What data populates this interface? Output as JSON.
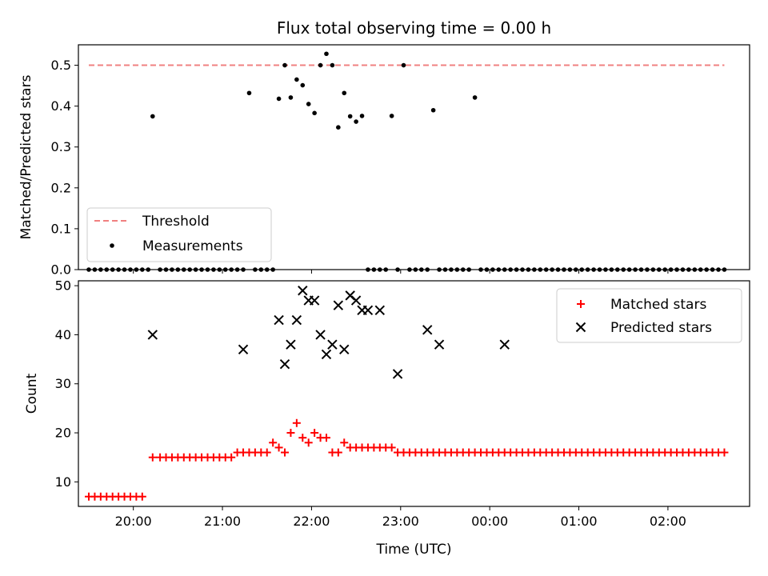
{
  "chart_data": [
    {
      "type": "scatter",
      "title": "Flux total observing time = 0.00 h",
      "xlabel": "",
      "ylabel": "Matched/Predicted stars",
      "xlim": [
        "19:23",
        "02:55"
      ],
      "ylim": [
        0.0,
        0.55
      ],
      "yticks": [
        0.0,
        0.1,
        0.2,
        0.3,
        0.4,
        0.5
      ],
      "yticklabels": [
        "0.0",
        "0.1",
        "0.2",
        "0.3",
        "0.4",
        "0.5"
      ],
      "xticks": [
        "20:00",
        "21:00",
        "22:00",
        "23:00",
        "00:00",
        "01:00",
        "02:00"
      ],
      "legend_position": "lower-left",
      "threshold": {
        "name": "Threshold",
        "value": 0.5,
        "color": "#f08080",
        "x_start": "19:30",
        "x_end": "02:38"
      },
      "series": [
        {
          "name": "Measurements",
          "color": "#000000",
          "x": [
            "19:30",
            "19:34",
            "19:38",
            "19:42",
            "19:46",
            "19:50",
            "19:54",
            "19:58",
            "20:02",
            "20:06",
            "20:10",
            "20:13",
            "20:18",
            "20:22",
            "20:26",
            "20:30",
            "20:34",
            "20:38",
            "20:42",
            "20:46",
            "20:50",
            "20:54",
            "20:58",
            "21:02",
            "21:06",
            "21:10",
            "21:14",
            "21:18",
            "21:22",
            "21:26",
            "21:30",
            "21:34",
            "21:38",
            "21:42",
            "21:46",
            "21:50",
            "21:54",
            "21:58",
            "22:02",
            "22:06",
            "22:10",
            "22:14",
            "22:18",
            "22:22",
            "22:26",
            "22:30",
            "22:34",
            "22:38",
            "22:42",
            "22:46",
            "22:50",
            "22:54",
            "22:58",
            "23:02",
            "23:06",
            "23:10",
            "23:14",
            "23:18",
            "23:22",
            "23:26",
            "23:30",
            "23:34",
            "23:38",
            "23:42",
            "23:46",
            "23:50",
            "23:54",
            "23:58",
            "00:02",
            "00:06",
            "00:10",
            "00:14",
            "00:18",
            "00:22",
            "00:26",
            "00:30",
            "00:34",
            "00:38",
            "00:42",
            "00:46",
            "00:50",
            "00:54",
            "00:58",
            "01:02",
            "01:06",
            "01:10",
            "01:14",
            "01:18",
            "01:22",
            "01:26",
            "01:30",
            "01:34",
            "01:38",
            "01:42",
            "01:46",
            "01:50",
            "01:54",
            "01:58",
            "02:02",
            "02:06",
            "02:10",
            "02:14",
            "02:18",
            "02:22",
            "02:26",
            "02:30",
            "02:34",
            "02:38"
          ],
          "y": [
            0,
            0,
            0,
            0,
            0,
            0,
            0,
            0,
            0,
            0,
            0,
            0.375,
            0,
            0,
            0,
            0,
            0,
            0,
            0,
            0,
            0,
            0,
            0,
            0,
            0,
            0,
            0,
            0.432,
            0,
            0,
            0,
            0,
            0.418,
            0.5,
            0.421,
            0.465,
            0.451,
            0.405,
            0.383,
            0.5,
            0.528,
            0.5,
            0.348,
            0.432,
            0.375,
            0.362,
            0.376,
            0,
            0,
            0,
            0,
            0.376,
            0,
            0.5,
            0,
            0,
            0,
            0,
            0.39,
            0,
            0,
            0,
            0,
            0,
            0,
            0.421,
            0,
            0,
            0,
            0,
            0,
            0,
            0,
            0,
            0,
            0,
            0,
            0,
            0,
            0,
            0,
            0,
            0,
            0,
            0,
            0,
            0,
            0,
            0,
            0,
            0,
            0,
            0,
            0,
            0,
            0,
            0,
            0,
            0,
            0,
            0,
            0,
            0,
            0,
            0,
            0,
            0,
            0
          ]
        }
      ]
    },
    {
      "type": "scatter",
      "title": "",
      "xlabel": "Time (UTC)",
      "ylabel": "Count",
      "xlim": [
        "19:23",
        "02:55"
      ],
      "ylim": [
        5,
        51
      ],
      "yticks": [
        10,
        20,
        30,
        40,
        50
      ],
      "yticklabels": [
        "10",
        "20",
        "30",
        "40",
        "50"
      ],
      "xticks": [
        "20:00",
        "21:00",
        "22:00",
        "23:00",
        "00:00",
        "01:00",
        "02:00"
      ],
      "legend_position": "upper-right",
      "series": [
        {
          "name": "Matched stars",
          "color": "#ff0000",
          "marker": "plus",
          "x": [
            "19:30",
            "19:34",
            "19:38",
            "19:42",
            "19:46",
            "19:50",
            "19:54",
            "19:58",
            "20:02",
            "20:06",
            "20:13",
            "20:18",
            "20:22",
            "20:26",
            "20:30",
            "20:34",
            "20:38",
            "20:42",
            "20:46",
            "20:50",
            "20:54",
            "20:58",
            "21:02",
            "21:06",
            "21:10",
            "21:14",
            "21:18",
            "21:22",
            "21:26",
            "21:30",
            "21:34",
            "21:38",
            "21:42",
            "21:46",
            "21:50",
            "21:54",
            "21:58",
            "22:02",
            "22:06",
            "22:10",
            "22:14",
            "22:18",
            "22:22",
            "22:26",
            "22:30",
            "22:34",
            "22:38",
            "22:42",
            "22:46",
            "22:50",
            "22:54",
            "22:58",
            "23:02",
            "23:06",
            "23:10",
            "23:14",
            "23:18",
            "23:22",
            "23:26",
            "23:30",
            "23:34",
            "23:38",
            "23:42",
            "23:46",
            "23:50",
            "23:54",
            "23:58",
            "00:02",
            "00:06",
            "00:10",
            "00:14",
            "00:18",
            "00:22",
            "00:26",
            "00:30",
            "00:34",
            "00:38",
            "00:42",
            "00:46",
            "00:50",
            "00:54",
            "00:58",
            "01:02",
            "01:06",
            "01:10",
            "01:14",
            "01:18",
            "01:22",
            "01:26",
            "01:30",
            "01:34",
            "01:38",
            "01:42",
            "01:46",
            "01:50",
            "01:54",
            "01:58",
            "02:02",
            "02:06",
            "02:10",
            "02:14",
            "02:18",
            "02:22",
            "02:26",
            "02:30",
            "02:34",
            "02:38"
          ],
          "y": [
            7,
            7,
            7,
            7,
            7,
            7,
            7,
            7,
            7,
            7,
            15,
            15,
            15,
            15,
            15,
            15,
            15,
            15,
            15,
            15,
            15,
            15,
            15,
            15,
            16,
            16,
            16,
            16,
            16,
            16,
            18,
            17,
            16,
            20,
            22,
            19,
            18,
            20,
            19,
            19,
            16,
            16,
            18,
            17,
            17,
            17,
            17,
            17,
            17,
            17,
            17,
            16,
            16,
            16,
            16,
            16,
            16,
            16,
            16,
            16,
            16,
            16,
            16,
            16,
            16,
            16,
            16,
            16,
            16,
            16,
            16,
            16,
            16,
            16,
            16,
            16,
            16,
            16,
            16,
            16,
            16,
            16,
            16,
            16,
            16,
            16,
            16,
            16,
            16,
            16,
            16,
            16,
            16,
            16,
            16,
            16,
            16,
            16,
            16,
            16,
            16,
            16,
            16,
            16,
            16,
            16,
            16
          ]
        },
        {
          "name": "Predicted stars",
          "color": "#000000",
          "marker": "x",
          "x": [
            "20:13",
            "21:14",
            "21:38",
            "21:42",
            "21:46",
            "21:50",
            "21:54",
            "21:58",
            "22:02",
            "22:06",
            "22:10",
            "22:14",
            "22:18",
            "22:22",
            "22:26",
            "22:30",
            "22:34",
            "22:38",
            "22:46",
            "22:58",
            "23:18",
            "23:26",
            "00:10"
          ],
          "y": [
            40,
            37,
            43,
            34,
            38,
            43,
            49,
            47,
            47,
            40,
            36,
            38,
            46,
            37,
            48,
            47,
            45,
            45,
            45,
            32,
            41,
            38,
            38
          ]
        }
      ]
    }
  ]
}
